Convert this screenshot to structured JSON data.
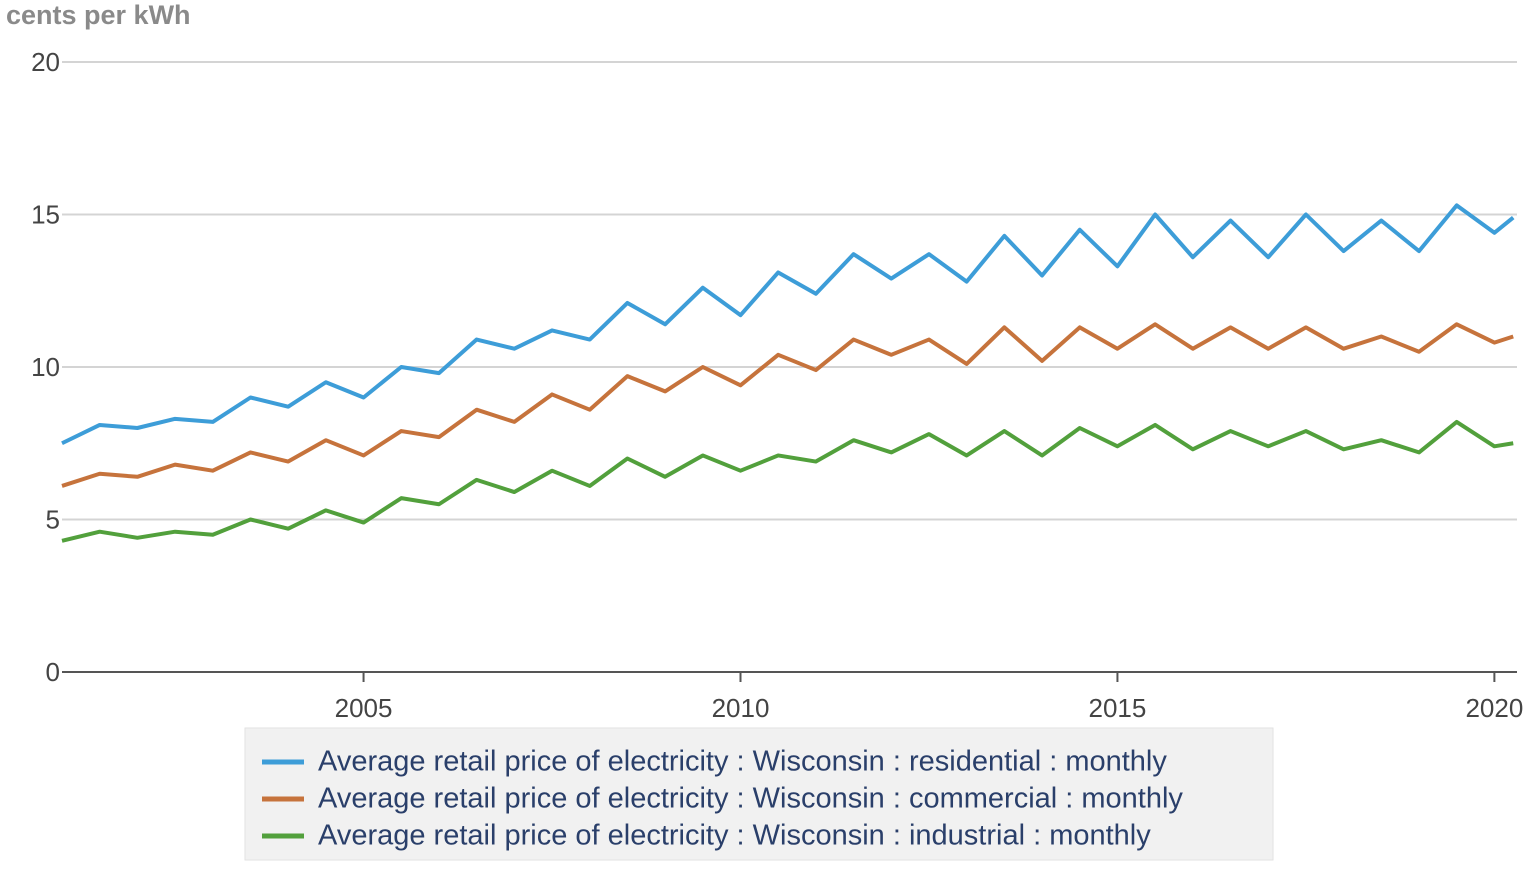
{
  "chart_data": {
    "type": "line",
    "title": "cents per kWh",
    "x": [
      2001,
      2001.5,
      2002,
      2002.5,
      2003,
      2003.5,
      2004,
      2004.5,
      2005,
      2005.5,
      2006,
      2006.5,
      2007,
      2007.5,
      2008,
      2008.5,
      2009,
      2009.5,
      2010,
      2010.5,
      2011,
      2011.5,
      2012,
      2012.5,
      2013,
      2013.5,
      2014,
      2014.5,
      2015,
      2015.5,
      2016,
      2016.5,
      2017,
      2017.5,
      2018,
      2018.5,
      2019,
      2019.5,
      2020,
      2020.25
    ],
    "series": [
      {
        "name": "Average retail price of electricity : Wisconsin : residential : monthly",
        "color": "#3d9dd8",
        "values": [
          7.5,
          8.1,
          8.0,
          8.3,
          8.2,
          9.0,
          8.7,
          9.5,
          9.0,
          10.0,
          9.8,
          10.9,
          10.6,
          11.2,
          10.9,
          12.1,
          11.4,
          12.6,
          11.7,
          13.1,
          12.4,
          13.7,
          12.9,
          13.7,
          12.8,
          14.3,
          13.0,
          14.5,
          13.3,
          15.0,
          13.6,
          14.8,
          13.6,
          15.0,
          13.8,
          14.8,
          13.8,
          15.3,
          14.4,
          14.9
        ]
      },
      {
        "name": "Average retail price of electricity : Wisconsin : commercial : monthly",
        "color": "#c6733c",
        "values": [
          6.1,
          6.5,
          6.4,
          6.8,
          6.6,
          7.2,
          6.9,
          7.6,
          7.1,
          7.9,
          7.7,
          8.6,
          8.2,
          9.1,
          8.6,
          9.7,
          9.2,
          10.0,
          9.4,
          10.4,
          9.9,
          10.9,
          10.4,
          10.9,
          10.1,
          11.3,
          10.2,
          11.3,
          10.6,
          11.4,
          10.6,
          11.3,
          10.6,
          11.3,
          10.6,
          11.0,
          10.5,
          11.4,
          10.8,
          11.0
        ]
      },
      {
        "name": "Average retail price of electricity : Wisconsin : industrial : monthly",
        "color": "#52a03c",
        "values": [
          4.3,
          4.6,
          4.4,
          4.6,
          4.5,
          5.0,
          4.7,
          5.3,
          4.9,
          5.7,
          5.5,
          6.3,
          5.9,
          6.6,
          6.1,
          7.0,
          6.4,
          7.1,
          6.6,
          7.1,
          6.9,
          7.6,
          7.2,
          7.8,
          7.1,
          7.9,
          7.1,
          8.0,
          7.4,
          8.1,
          7.3,
          7.9,
          7.4,
          7.9,
          7.3,
          7.6,
          7.2,
          8.2,
          7.4,
          7.5
        ]
      }
    ],
    "xlim": [
      2001,
      2020.3
    ],
    "xticks": [
      2005,
      2010,
      2015,
      2020
    ],
    "ylim": [
      0,
      20
    ],
    "yticks": [
      0,
      5,
      10,
      15,
      20
    ],
    "grid": true,
    "legend": "bottom"
  }
}
